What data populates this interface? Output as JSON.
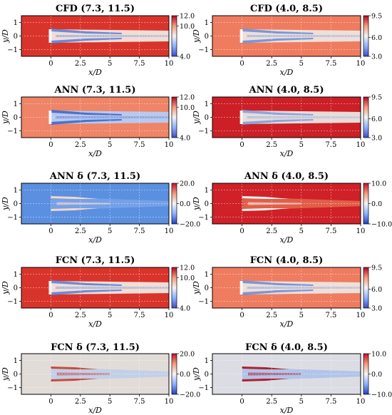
{
  "figure": {
    "xlabel": "x/D",
    "ylabel": "y/D",
    "x_ticks": [
      "0",
      "2.5",
      "5",
      "7.5",
      "10"
    ],
    "y_ticks": [
      "1",
      "0",
      "−1"
    ]
  },
  "chart_data": [
    {
      "type": "heatmap",
      "title": "CFD (7.3, 11.5)",
      "xlabel": "x/D",
      "ylabel": "y/D",
      "xlim": [
        -2.5,
        10
      ],
      "ylim": [
        -1.5,
        1.5
      ],
      "colorbar": {
        "ticks": [
          "12.0",
          "10.0",
          "4.0"
        ],
        "range": [
          4.0,
          12.0
        ]
      },
      "colors": {
        "background": "#d9342b",
        "wake": "#f1ddd6",
        "shear": "#5a82d8"
      },
      "kind": "field"
    },
    {
      "type": "heatmap",
      "title": "CFD (4.0, 8.5)",
      "xlabel": "x/D",
      "ylabel": "y/D",
      "xlim": [
        -2.5,
        10
      ],
      "ylim": [
        -1.5,
        1.5
      ],
      "colorbar": {
        "ticks": [
          "9.5",
          "6.0",
          "3.0"
        ],
        "range": [
          3.0,
          9.5
        ]
      },
      "colors": {
        "background": "#ef7c5f",
        "wake": "#eedfd8",
        "shear": "#6a8fdb"
      },
      "kind": "field"
    },
    {
      "type": "heatmap",
      "title": "ANN (7.3, 11.5)",
      "xlabel": "x/D",
      "ylabel": "y/D",
      "xlim": [
        -2.5,
        10
      ],
      "ylim": [
        -1.5,
        1.5
      ],
      "colorbar": {
        "ticks": [
          "12.0",
          "10.0",
          "4.0"
        ],
        "range": [
          4.0,
          12.0
        ]
      },
      "colors": {
        "background": "#ef8466",
        "wake": "#b9c9ee",
        "shear": "#3f68c9"
      },
      "kind": "field"
    },
    {
      "type": "heatmap",
      "title": "ANN (4.0, 8.5)",
      "xlabel": "x/D",
      "ylabel": "y/D",
      "xlim": [
        -2.5,
        10
      ],
      "ylim": [
        -1.5,
        1.5
      ],
      "colorbar": {
        "ticks": [
          "9.5",
          "6.0",
          "3.0"
        ],
        "range": [
          3.0,
          9.5
        ]
      },
      "colors": {
        "background": "#cc1f26",
        "wake": "#e7dcd8",
        "shear": "#7e9ee2"
      },
      "kind": "field"
    },
    {
      "type": "heatmap",
      "title": "ANN δ (7.3, 11.5)",
      "xlabel": "x/D",
      "ylabel": "y/D",
      "xlim": [
        -2.5,
        10
      ],
      "ylim": [
        -1.5,
        1.5
      ],
      "colorbar": {
        "ticks": [
          "20.0",
          "0.0",
          "−20.0"
        ],
        "range": [
          -20.0,
          20.0
        ]
      },
      "colors": {
        "background": "#5b8fe0",
        "wake": "#7aa4e8",
        "shear": "#f4d6c8"
      },
      "kind": "delta"
    },
    {
      "type": "heatmap",
      "title": "ANN δ (4.0, 8.5)",
      "xlabel": "x/D",
      "ylabel": "y/D",
      "xlim": [
        -2.5,
        10
      ],
      "ylim": [
        -1.5,
        1.5
      ],
      "colorbar": {
        "ticks": [
          "10.0",
          "0.0",
          "−10.0"
        ],
        "range": [
          -10.0,
          10.0
        ]
      },
      "colors": {
        "background": "#cf2127",
        "wake": "#e4694f",
        "shear": "#f2f0f0"
      },
      "kind": "delta"
    },
    {
      "type": "heatmap",
      "title": "FCN (7.3, 11.5)",
      "xlabel": "x/D",
      "ylabel": "y/D",
      "xlim": [
        -2.5,
        10
      ],
      "ylim": [
        -1.5,
        1.5
      ],
      "colorbar": {
        "ticks": [
          "12.0",
          "10.0",
          "4.0"
        ],
        "range": [
          4.0,
          12.0
        ]
      },
      "colors": {
        "background": "#d9342b",
        "wake": "#f1ddd6",
        "shear": "#5a82d8"
      },
      "kind": "field"
    },
    {
      "type": "heatmap",
      "title": "FCN (4.0, 8.5)",
      "xlabel": "x/D",
      "ylabel": "y/D",
      "xlim": [
        -2.5,
        10
      ],
      "ylim": [
        -1.5,
        1.5
      ],
      "colorbar": {
        "ticks": [
          "9.5",
          "6.0",
          "3.0"
        ],
        "range": [
          3.0,
          9.5
        ]
      },
      "colors": {
        "background": "#ef7c5f",
        "wake": "#eedfd8",
        "shear": "#6a8fdb"
      },
      "kind": "field"
    },
    {
      "type": "heatmap",
      "title": "FCN δ (7.3, 11.5)",
      "xlabel": "x/D",
      "ylabel": "y/D",
      "xlim": [
        -2.5,
        10
      ],
      "ylim": [
        -1.5,
        1.5
      ],
      "colorbar": {
        "ticks": [
          "20.0",
          "0.0",
          "−20.0"
        ],
        "range": [
          -20.0,
          20.0
        ]
      },
      "colors": {
        "background": "#e2dcd8",
        "wake": "#bccdeb",
        "shear": "#c94a3d"
      },
      "kind": "delta"
    },
    {
      "type": "heatmap",
      "title": "FCN δ (4.0, 8.5)",
      "xlabel": "x/D",
      "ylabel": "y/D",
      "xlim": [
        -2.5,
        10
      ],
      "ylim": [
        -1.5,
        1.5
      ],
      "colorbar": {
        "ticks": [
          "10.0",
          "0.0",
          "−10.0"
        ],
        "range": [
          -10.0,
          10.0
        ]
      },
      "colors": {
        "background": "#dcdde4",
        "wake": "#a9c0ea",
        "shear": "#b0202a"
      },
      "kind": "delta"
    }
  ]
}
